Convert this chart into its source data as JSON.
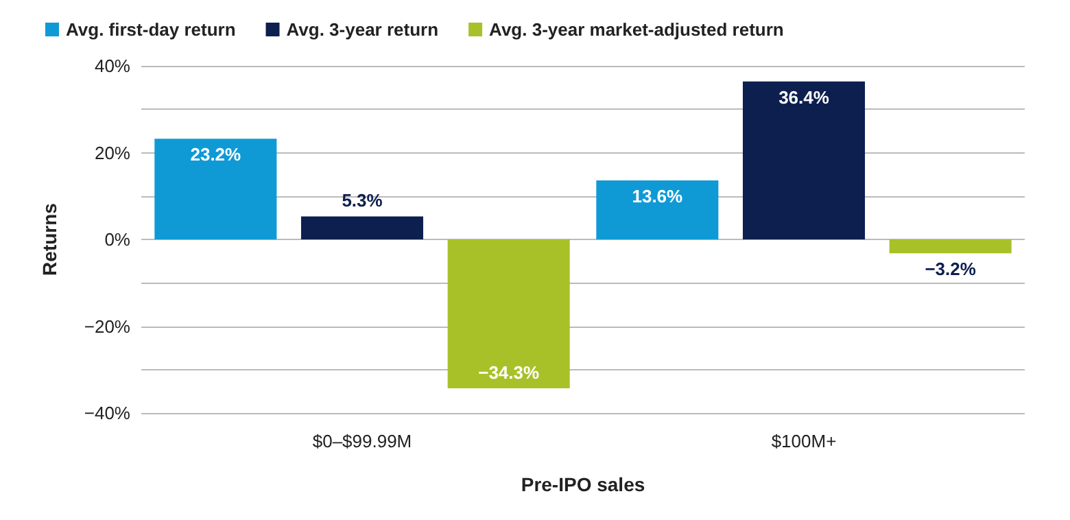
{
  "chart_data": {
    "type": "bar",
    "categories": [
      "$0–$99.99M",
      "$100M+"
    ],
    "xlabel": "Pre-IPO sales",
    "ylabel": "Returns",
    "series": [
      {
        "name": "Avg. first-day return",
        "color": "#0f9ad6",
        "values": [
          23.2,
          13.6
        ],
        "value_labels": [
          "23.2%",
          "13.6%"
        ]
      },
      {
        "name": "Avg. 3-year return",
        "color": "#0d1f4f",
        "values": [
          5.3,
          36.4
        ],
        "value_labels": [
          "5.3%",
          "36.4%"
        ]
      },
      {
        "name": "Avg. 3-year market-adjusted return",
        "color": "#a9c128",
        "values": [
          -34.3,
          -3.2
        ],
        "value_labels": [
          "−34.3%",
          "−3.2%"
        ]
      }
    ],
    "ylim": [
      -40,
      40
    ],
    "yticks": [
      {
        "value": -40,
        "label": "−40%"
      },
      {
        "value": -30,
        "label": null
      },
      {
        "value": -20,
        "label": "−20%"
      },
      {
        "value": -10,
        "label": null
      },
      {
        "value": 0,
        "label": "0%"
      },
      {
        "value": 10,
        "label": null
      },
      {
        "value": 20,
        "label": "20%"
      },
      {
        "value": 30,
        "label": null
      },
      {
        "value": 40,
        "label": "40%"
      }
    ],
    "grid": "y",
    "legend": "top left"
  }
}
